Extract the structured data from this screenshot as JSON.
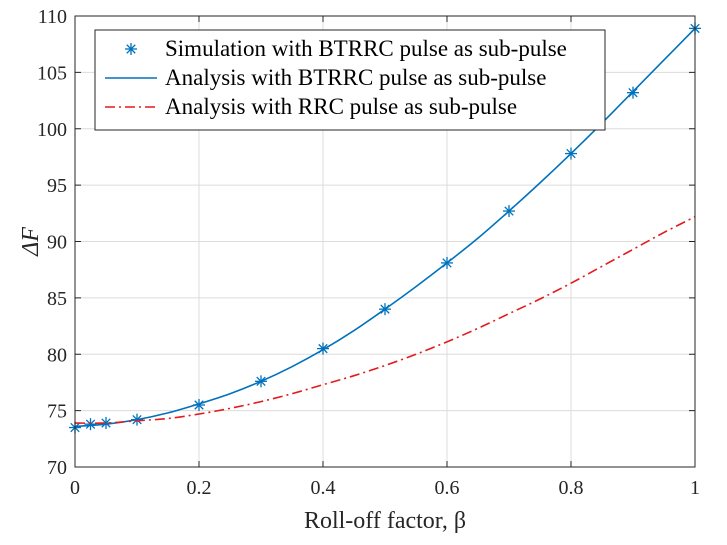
{
  "chart_data": {
    "type": "line",
    "xlabel": "Roll-off factor, β",
    "ylabel": "ΔF",
    "xlim": [
      0,
      1
    ],
    "ylim": [
      70,
      110
    ],
    "xticks": [
      0,
      0.2,
      0.4,
      0.6,
      0.8,
      1
    ],
    "xtick_labels": [
      "0",
      "0.2",
      "0.4",
      "0.6",
      "0.8",
      "1"
    ],
    "yticks": [
      70,
      75,
      80,
      85,
      90,
      95,
      100,
      105,
      110
    ],
    "ytick_labels": [
      "70",
      "75",
      "80",
      "85",
      "90",
      "95",
      "100",
      "105",
      "110"
    ],
    "grid": true,
    "legend_position": "top-left",
    "series": [
      {
        "name": "Simulation with BTRRC pulse as sub-pulse",
        "style": "markers",
        "marker": "*",
        "color": "#0072BD",
        "x": [
          0,
          0.025,
          0.05,
          0.1,
          0.2,
          0.3,
          0.4,
          0.5,
          0.6,
          0.7,
          0.8,
          0.9,
          1.0
        ],
        "y": [
          73.5,
          73.8,
          73.9,
          74.2,
          75.5,
          77.6,
          80.5,
          84.0,
          88.1,
          92.7,
          97.8,
          103.2,
          108.9
        ]
      },
      {
        "name": "Analysis with BTRRC pulse as sub-pulse",
        "style": "solid",
        "color": "#0072BD",
        "x": [
          0,
          0.05,
          0.1,
          0.15,
          0.2,
          0.25,
          0.3,
          0.35,
          0.4,
          0.45,
          0.5,
          0.55,
          0.6,
          0.65,
          0.7,
          0.75,
          0.8,
          0.85,
          0.9,
          0.95,
          1.0
        ],
        "y": [
          73.6,
          73.8,
          74.2,
          74.8,
          75.6,
          76.5,
          77.6,
          78.9,
          80.4,
          82.1,
          84.0,
          86.0,
          88.1,
          90.3,
          92.7,
          95.2,
          97.8,
          100.5,
          103.3,
          106.1,
          108.9
        ]
      },
      {
        "name": "Analysis with RRC pulse as sub-pulse",
        "style": "dashdot",
        "color": "#E41A1C",
        "x": [
          0,
          0.05,
          0.1,
          0.15,
          0.2,
          0.25,
          0.3,
          0.35,
          0.4,
          0.45,
          0.5,
          0.55,
          0.6,
          0.65,
          0.7,
          0.75,
          0.8,
          0.85,
          0.9,
          0.95,
          1.0
        ],
        "y": [
          73.9,
          73.9,
          74.1,
          74.3,
          74.7,
          75.2,
          75.8,
          76.5,
          77.3,
          78.1,
          79.0,
          80.0,
          81.1,
          82.3,
          83.6,
          84.9,
          86.3,
          87.8,
          89.3,
          90.8,
          92.2
        ]
      }
    ]
  }
}
